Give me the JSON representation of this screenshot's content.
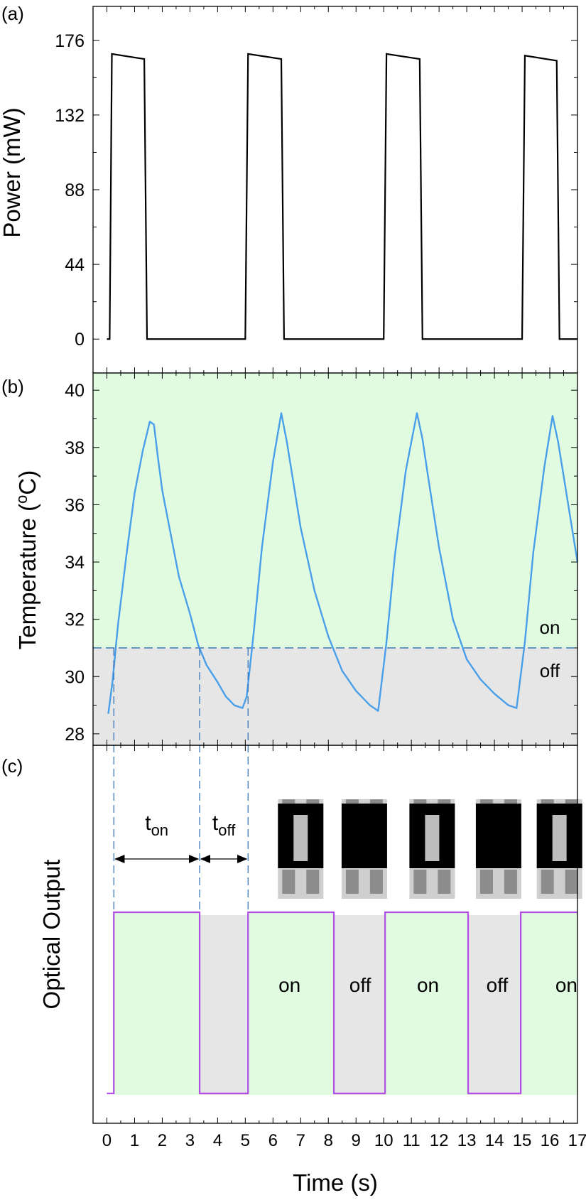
{
  "chart_data": [
    {
      "panel_label": "(a)",
      "type": "line",
      "ylabel": "Power (mW)",
      "xlim": [
        -0.5,
        17
      ],
      "ylim": [
        -20,
        196
      ],
      "yticks": [
        0,
        44,
        88,
        132,
        176
      ],
      "colors": {
        "line": "#000000"
      },
      "series": [
        {
          "x": [
            0.0,
            0.1,
            0.18,
            1.35,
            1.45,
            5.0,
            5.1,
            6.3,
            6.4,
            10.0,
            10.1,
            11.3,
            11.4,
            15.0,
            15.1,
            16.25,
            16.35,
            17.0
          ],
          "y": [
            0,
            0,
            168,
            165,
            0,
            0,
            168,
            165,
            0,
            0,
            168,
            165,
            0,
            0,
            167,
            164,
            0,
            0
          ]
        }
      ]
    },
    {
      "panel_label": "(b)",
      "type": "line",
      "ylabel": "Temperature (oC)",
      "ylabel_main": "Temperature (",
      "ylabel_sup": "o",
      "ylabel_end": "C)",
      "xlim": [
        -0.5,
        17
      ],
      "ylim": [
        27.6,
        40.6
      ],
      "yticks": [
        28,
        30,
        32,
        34,
        36,
        38,
        40
      ],
      "threshold": 31.0,
      "region_labels": {
        "on": "on",
        "off": "off"
      },
      "colors": {
        "line": "#4a9fea",
        "threshold": "#2a6db5",
        "on_region": "#e0fbe0",
        "off_region": "#e6e6e6",
        "on_text": "#2eaa2e",
        "off_text": "#555555"
      },
      "series": [
        {
          "x": [
            0.05,
            0.2,
            0.4,
            0.7,
            1.0,
            1.3,
            1.55,
            1.7,
            1.85,
            2.0,
            2.3,
            2.6,
            3.0,
            3.3,
            3.6,
            4.0,
            4.3,
            4.6,
            4.9,
            5.05,
            5.3,
            5.6,
            6.0,
            6.3,
            6.5,
            6.7,
            7.0,
            7.5,
            8.0,
            8.5,
            9.0,
            9.5,
            9.8,
            10.1,
            10.4,
            10.8,
            11.2,
            11.4,
            11.6,
            12.0,
            12.5,
            13.0,
            13.5,
            14.0,
            14.5,
            14.8,
            15.1,
            15.4,
            15.8,
            16.1,
            16.3,
            16.5,
            16.8,
            17.0
          ],
          "y": [
            28.7,
            29.8,
            31.8,
            34.2,
            36.4,
            37.9,
            38.9,
            38.8,
            37.6,
            36.5,
            35.0,
            33.5,
            32.2,
            31.1,
            30.4,
            29.8,
            29.3,
            29.0,
            28.9,
            29.3,
            31.5,
            34.5,
            37.5,
            39.2,
            38.2,
            37.0,
            35.2,
            33.0,
            31.4,
            30.2,
            29.5,
            29.0,
            28.8,
            31.2,
            34.2,
            37.2,
            39.2,
            38.3,
            37.0,
            34.5,
            32.0,
            30.6,
            29.9,
            29.4,
            29.0,
            28.9,
            31.2,
            34.3,
            37.3,
            39.1,
            38.2,
            37.0,
            35.2,
            34.0
          ]
        }
      ]
    },
    {
      "panel_label": "(c)",
      "type": "line",
      "ylabel": "Optical Output",
      "xlabel": "Time (s)",
      "xlim": [
        -0.5,
        17
      ],
      "xticks": [
        0,
        1,
        2,
        3,
        4,
        5,
        6,
        7,
        8,
        9,
        10,
        11,
        12,
        13,
        14,
        15,
        16,
        17
      ],
      "ton_label_main": "t",
      "ton_label_sub": "on",
      "toff_label_main": "t",
      "toff_label_sub": "off",
      "markers_x": [
        0.25,
        3.35,
        5.1
      ],
      "state_labels": [
        "on",
        "off",
        "on",
        "off",
        "on"
      ],
      "state_label_x": [
        6.6,
        9.15,
        11.6,
        14.1,
        16.6
      ],
      "thumbnail_states": [
        "on",
        "off",
        "on",
        "off",
        "on"
      ],
      "thumbnail_x": [
        7.0,
        9.3,
        11.75,
        14.15,
        16.35
      ],
      "colors": {
        "line": "#b04ee6",
        "on_region": "#e0fbe0",
        "off_region": "#e6e6e6",
        "on_text": "#2eaa2e",
        "off_text": "#555555",
        "marker": "#2a6db5"
      },
      "series": [
        {
          "x": [
            0.0,
            0.25,
            0.25,
            3.35,
            3.35,
            5.1,
            5.1,
            8.2,
            8.2,
            10.05,
            10.05,
            13.05,
            13.05,
            14.95,
            14.95,
            17.0
          ],
          "y": [
            0,
            0,
            1,
            1,
            0,
            0,
            1,
            1,
            0,
            0,
            1,
            1,
            0,
            0,
            1,
            1
          ]
        }
      ]
    }
  ]
}
